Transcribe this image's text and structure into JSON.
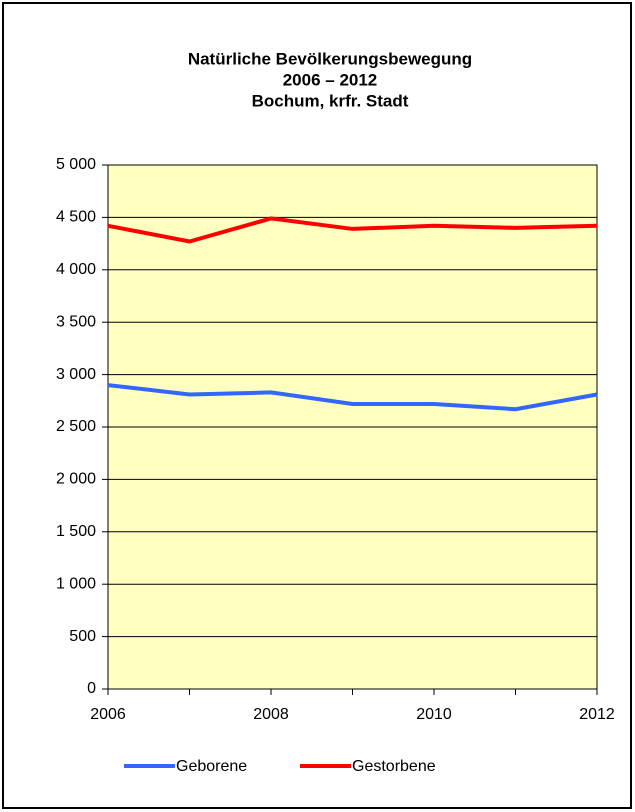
{
  "chart_data": {
    "type": "line",
    "title": [
      "Natürliche Bevölkerungsbewegung",
      "2006 – 2012",
      "Bochum, krfr. Stadt"
    ],
    "x": [
      2006,
      2007,
      2008,
      2009,
      2010,
      2011,
      2012
    ],
    "series": [
      {
        "name": "Geborene",
        "color": "#3366ff",
        "values": [
          2900,
          2810,
          2830,
          2720,
          2720,
          2670,
          2810
        ]
      },
      {
        "name": "Gestorbene",
        "color": "#ff0000",
        "values": [
          4420,
          4270,
          4490,
          4390,
          4420,
          4400,
          4420
        ]
      }
    ],
    "xlim": [
      2006,
      2012
    ],
    "xticks": [
      2006,
      2008,
      2010,
      2012
    ],
    "ylim": [
      0,
      5000
    ],
    "yticks": [
      0,
      500,
      {
        "value": 1000,
        "label": "1 000"
      },
      {
        "value": 1500,
        "label": "1 500"
      },
      {
        "value": 2000,
        "label": "2 000"
      },
      {
        "value": 2500,
        "label": "2 500"
      },
      {
        "value": 3000,
        "label": "3 000"
      },
      {
        "value": 3500,
        "label": "3 500"
      },
      {
        "value": 4000,
        "label": "4 000"
      },
      {
        "value": 4500,
        "label": "4 500"
      },
      {
        "value": 5000,
        "label": "5 000"
      }
    ],
    "grid": true,
    "plot_background": "#ffffc0",
    "legend": "bottom"
  }
}
